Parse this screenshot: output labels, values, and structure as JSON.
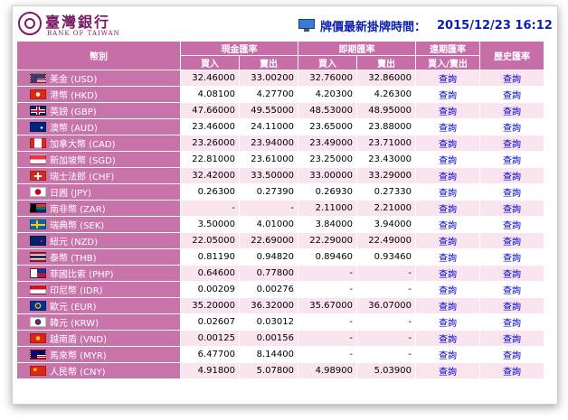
{
  "header": {
    "logo_cn": "臺灣銀行",
    "logo_en": "BANK OF TAIWAN",
    "rate_time_label": "牌價最新掛牌時間：",
    "rate_time_value": "2015/12/23 16:12"
  },
  "table": {
    "col_currency": "幣別",
    "col_cash": "現金匯率",
    "col_spot": "即期匯率",
    "col_forward": "遠期匯率",
    "col_history": "歷史匯率",
    "sub_buy": "買入",
    "sub_sell": "賣出",
    "sub_forward": "買入/賣出",
    "link_label": "查詢"
  },
  "rows": [
    {
      "name": "美金 (USD)",
      "flag": "flag-us",
      "cash_buy": "32.46000",
      "cash_sell": "33.00200",
      "spot_buy": "32.76000",
      "spot_sell": "32.86000"
    },
    {
      "name": "港幣 (HKD)",
      "flag": "flag-hk",
      "cash_buy": "4.08100",
      "cash_sell": "4.27700",
      "spot_buy": "4.20300",
      "spot_sell": "4.26300"
    },
    {
      "name": "英鎊 (GBP)",
      "flag": "flag-gb",
      "cash_buy": "47.66000",
      "cash_sell": "49.55000",
      "spot_buy": "48.53000",
      "spot_sell": "48.95000"
    },
    {
      "name": "澳幣 (AUD)",
      "flag": "flag-au",
      "cash_buy": "23.46000",
      "cash_sell": "24.11000",
      "spot_buy": "23.65000",
      "spot_sell": "23.88000"
    },
    {
      "name": "加拿大幣 (CAD)",
      "flag": "flag-ca",
      "cash_buy": "23.26000",
      "cash_sell": "23.94000",
      "spot_buy": "23.49000",
      "spot_sell": "23.71000"
    },
    {
      "name": "新加坡幣 (SGD)",
      "flag": "flag-sg",
      "cash_buy": "22.81000",
      "cash_sell": "23.61000",
      "spot_buy": "23.25000",
      "spot_sell": "23.43000"
    },
    {
      "name": "瑞士法郎 (CHF)",
      "flag": "flag-ch",
      "cash_buy": "32.42000",
      "cash_sell": "33.50000",
      "spot_buy": "33.00000",
      "spot_sell": "33.29000"
    },
    {
      "name": "日圓 (JPY)",
      "flag": "flag-jp",
      "cash_buy": "0.26300",
      "cash_sell": "0.27390",
      "spot_buy": "0.26930",
      "spot_sell": "0.27330"
    },
    {
      "name": "南非幣 (ZAR)",
      "flag": "flag-za",
      "cash_buy": "-",
      "cash_sell": "-",
      "spot_buy": "2.11000",
      "spot_sell": "2.21000"
    },
    {
      "name": "瑞典幣 (SEK)",
      "flag": "flag-se",
      "cash_buy": "3.50000",
      "cash_sell": "4.01000",
      "spot_buy": "3.84000",
      "spot_sell": "3.94000"
    },
    {
      "name": "紐元 (NZD)",
      "flag": "flag-nz",
      "cash_buy": "22.05000",
      "cash_sell": "22.69000",
      "spot_buy": "22.29000",
      "spot_sell": "22.49000"
    },
    {
      "name": "泰幣 (THB)",
      "flag": "flag-th",
      "cash_buy": "0.81190",
      "cash_sell": "0.94820",
      "spot_buy": "0.89460",
      "spot_sell": "0.93460"
    },
    {
      "name": "菲國比索 (PHP)",
      "flag": "flag-ph",
      "cash_buy": "0.64600",
      "cash_sell": "0.77800",
      "spot_buy": "-",
      "spot_sell": "-"
    },
    {
      "name": "印尼幣 (IDR)",
      "flag": "flag-id",
      "cash_buy": "0.00209",
      "cash_sell": "0.00276",
      "spot_buy": "-",
      "spot_sell": "-"
    },
    {
      "name": "歐元 (EUR)",
      "flag": "flag-eu",
      "cash_buy": "35.20000",
      "cash_sell": "36.32000",
      "spot_buy": "35.67000",
      "spot_sell": "36.07000"
    },
    {
      "name": "韓元 (KRW)",
      "flag": "flag-kr",
      "cash_buy": "0.02607",
      "cash_sell": "0.03012",
      "spot_buy": "-",
      "spot_sell": "-"
    },
    {
      "name": "越南盾 (VND)",
      "flag": "flag-vn",
      "cash_buy": "0.00125",
      "cash_sell": "0.00156",
      "spot_buy": "-",
      "spot_sell": "-"
    },
    {
      "name": "馬來幣 (MYR)",
      "flag": "flag-my",
      "cash_buy": "6.47700",
      "cash_sell": "8.14400",
      "spot_buy": "-",
      "spot_sell": "-"
    },
    {
      "name": "人民幣 (CNY)",
      "flag": "flag-cn",
      "cash_buy": "4.91800",
      "cash_sell": "5.07800",
      "spot_buy": "4.98900",
      "spot_sell": "5.03900"
    }
  ]
}
